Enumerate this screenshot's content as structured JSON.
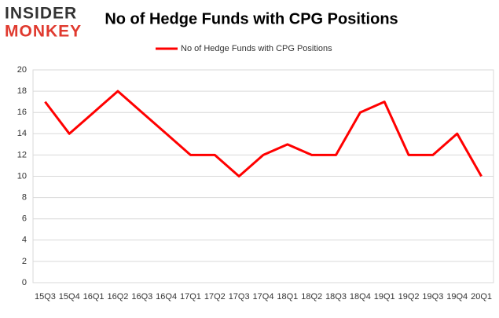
{
  "logo": {
    "line1": "INSIDER",
    "line2": "MONKEY"
  },
  "chart_data": {
    "type": "line",
    "title": "No of Hedge Funds with CPG Positions",
    "categories": [
      "15Q3",
      "15Q4",
      "16Q1",
      "16Q2",
      "16Q3",
      "16Q4",
      "17Q1",
      "17Q2",
      "17Q3",
      "17Q4",
      "18Q1",
      "18Q2",
      "18Q3",
      "18Q4",
      "19Q1",
      "19Q2",
      "19Q3",
      "19Q4",
      "20Q1"
    ],
    "series": [
      {
        "name": "No of Hedge Funds with CPG Positions",
        "color": "#ff0000",
        "values": [
          17,
          14,
          16,
          18,
          16,
          14,
          12,
          12,
          10,
          12,
          13,
          12,
          12,
          16,
          17,
          12,
          12,
          14,
          10
        ]
      }
    ],
    "ylim": [
      0,
      20
    ],
    "yticks": [
      0,
      2,
      4,
      6,
      8,
      10,
      12,
      14,
      16,
      18,
      20
    ],
    "grid": true,
    "legend": "top"
  }
}
